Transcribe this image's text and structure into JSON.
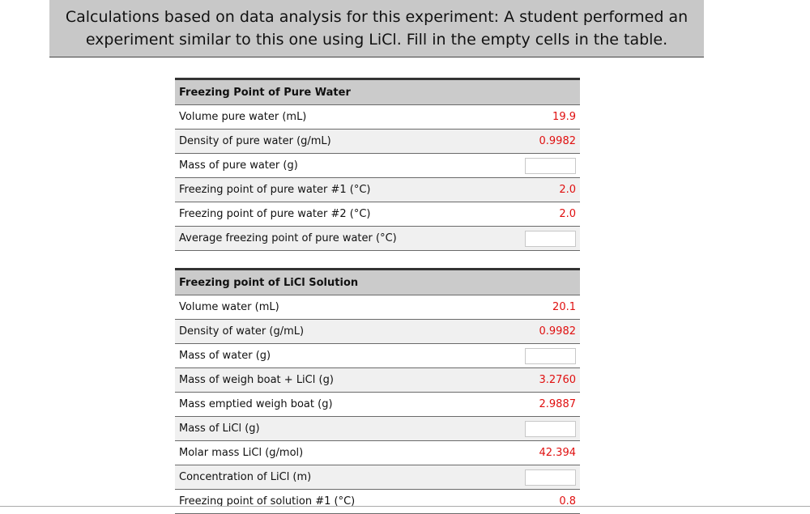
{
  "banner": {
    "line1": "Calculations based on data analysis for this experiment: A student performed an",
    "line2": "experiment similar to this one using LiCl. Fill in the empty cells in the table."
  },
  "sections": [
    {
      "header": "Freezing Point of Pure Water",
      "rows": [
        {
          "label": "Volume pure water (mL)",
          "value": "19.9"
        },
        {
          "label": "Density of pure water (g/mL)",
          "value": "0.9982"
        },
        {
          "label": "Mass of pure water (g)",
          "value": ""
        },
        {
          "label": "Freezing point of pure water #1 (°C)",
          "value": "2.0"
        },
        {
          "label": "Freezing point of pure water #2 (°C)",
          "value": "2.0"
        },
        {
          "label": "Average freezing point of pure water (°C)",
          "value": ""
        }
      ]
    },
    {
      "header": "Freezing point of LiCl Solution",
      "rows": [
        {
          "label": "Volume water (mL)",
          "value": "20.1"
        },
        {
          "label": "Density of water (g/mL)",
          "value": "0.9982"
        },
        {
          "label": "Mass of water (g)",
          "value": ""
        },
        {
          "label": "Mass of weigh boat + LiCl (g)",
          "value": "3.2760"
        },
        {
          "label": "Mass emptied weigh boat (g)",
          "value": "2.9887"
        },
        {
          "label": "Mass of LiCl (g)",
          "value": ""
        },
        {
          "label": "Molar mass LiCl (g/mol)",
          "value": "42.394"
        },
        {
          "label": "Concentration of LiCl (m)",
          "value": ""
        },
        {
          "label": "Freezing point of solution #1 (°C)",
          "value": "0.8"
        }
      ]
    }
  ],
  "colors": {
    "value_text": "#e01010",
    "header_bg": "#cbcbcb",
    "alt_bg": "#f0f0f0",
    "banner_bg": "#c8c8c8"
  }
}
